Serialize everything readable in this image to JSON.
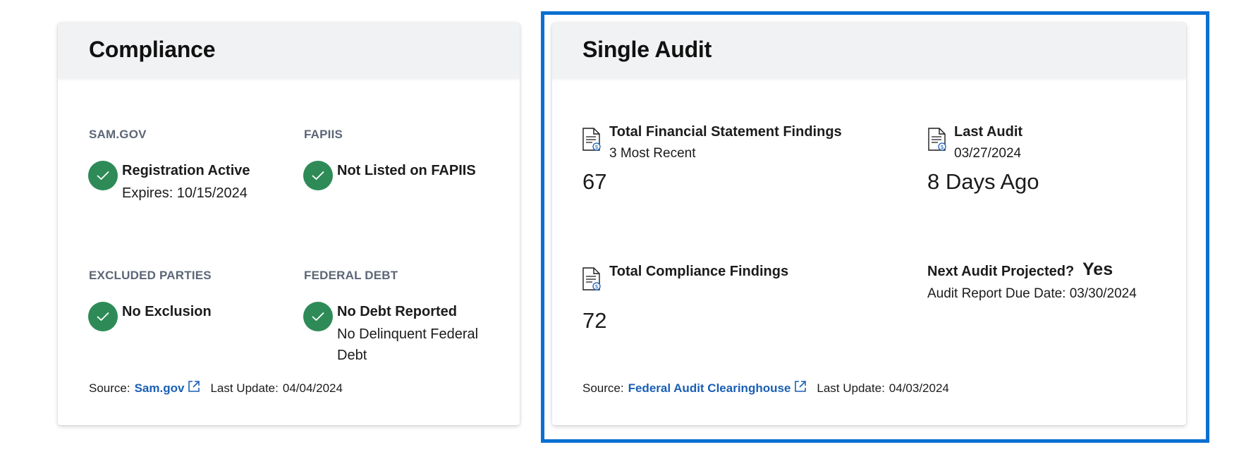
{
  "compliance": {
    "title": "Compliance",
    "sam": {
      "label": "SAM.GOV",
      "status": "Registration Active",
      "detail": "Expires: 10/15/2024"
    },
    "fapiis": {
      "label": "FAPIIS",
      "status": "Not Listed on FAPIIS"
    },
    "excluded": {
      "label": "EXCLUDED PARTIES",
      "status": "No Exclusion"
    },
    "debt": {
      "label": "FEDERAL DEBT",
      "status": "No Debt Reported",
      "detail_line1": "No Delinquent Federal",
      "detail_line2": "Debt"
    },
    "source": {
      "prefix": "Source:",
      "link": "Sam.gov",
      "update_label": "Last Update:",
      "update_date": "04/04/2024"
    }
  },
  "single_audit": {
    "title": "Single Audit",
    "financial": {
      "title": "Total Financial Statement Findings",
      "sub": "3 Most Recent",
      "value": "67"
    },
    "last_audit": {
      "title": "Last Audit",
      "sub": "03/27/2024",
      "value": "8 Days Ago"
    },
    "compliance_findings": {
      "title": "Total Compliance Findings",
      "value": "72"
    },
    "next_audit": {
      "label": "Next Audit Projected?",
      "value": "Yes",
      "due": "Audit Report Due Date: 03/30/2024"
    },
    "source": {
      "prefix": "Source:",
      "link": "Federal Audit Clearinghouse",
      "update_label": "Last Update:",
      "update_date": "04/03/2024"
    }
  },
  "colors": {
    "check": "#2e8b57",
    "link": "#1a5fb4",
    "highlight": "#0b6fd1",
    "header_bg": "#f1f2f4"
  },
  "icons": {
    "status": "check-circle-icon",
    "external": "external-link-icon",
    "document": "document-dollar-icon"
  }
}
